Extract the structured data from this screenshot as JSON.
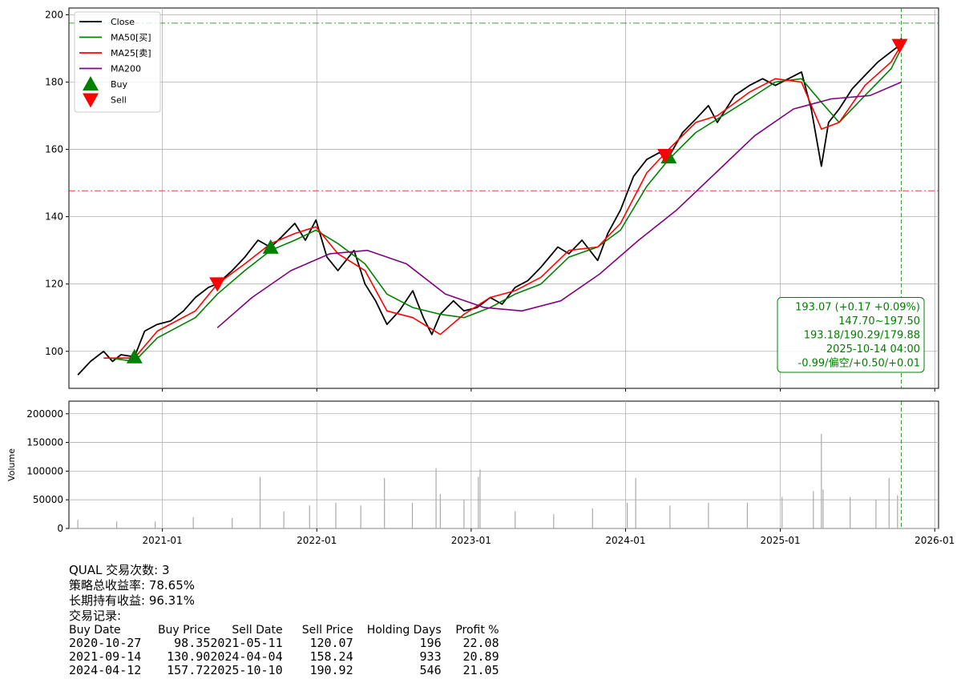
{
  "chart_data": [
    {
      "type": "line",
      "title": "",
      "xlabel": "",
      "ylabel": "",
      "ylim": [
        89,
        202
      ],
      "yticks": [
        100,
        120,
        140,
        160,
        180,
        200
      ],
      "xlim": [
        "2020-05-25",
        "2026-01-10"
      ],
      "xticks": [
        "2021-01-01",
        "2022-01-01",
        "2023-01-01",
        "2024-01-01",
        "2025-01-01",
        "2026-01-01"
      ],
      "xtick_labels": [
        "2021-01",
        "2022-01",
        "2023-01",
        "2024-01",
        "2025-01",
        "2026-01"
      ],
      "grid": true,
      "legend": "upper-left",
      "series": [
        {
          "name": "Close",
          "color": "#000000",
          "x": [
            "2020-06-15",
            "2020-07-15",
            "2020-08-15",
            "2020-09-05",
            "2020-09-25",
            "2020-10-27",
            "2020-11-20",
            "2020-12-20",
            "2021-01-20",
            "2021-02-20",
            "2021-03-20",
            "2021-04-20",
            "2021-05-11",
            "2021-06-15",
            "2021-07-15",
            "2021-08-15",
            "2021-09-14",
            "2021-10-10",
            "2021-11-10",
            "2021-12-05",
            "2021-12-30",
            "2022-01-25",
            "2022-02-20",
            "2022-03-30",
            "2022-04-25",
            "2022-05-20",
            "2022-06-16",
            "2022-07-15",
            "2022-08-16",
            "2022-09-10",
            "2022-09-30",
            "2022-10-20",
            "2022-11-20",
            "2022-12-15",
            "2023-01-15",
            "2023-02-15",
            "2023-03-15",
            "2023-04-15",
            "2023-05-15",
            "2023-06-15",
            "2023-07-25",
            "2023-08-20",
            "2023-09-20",
            "2023-10-27",
            "2023-11-20",
            "2023-12-20",
            "2024-01-20",
            "2024-02-20",
            "2024-03-20",
            "2024-04-12",
            "2024-05-15",
            "2024-06-15",
            "2024-07-15",
            "2024-08-05",
            "2024-09-15",
            "2024-10-20",
            "2024-11-20",
            "2024-12-20",
            "2025-01-20",
            "2025-02-20",
            "2025-03-15",
            "2025-04-08",
            "2025-04-25",
            "2025-05-20",
            "2025-06-20",
            "2025-07-20",
            "2025-08-20",
            "2025-09-20",
            "2025-10-10",
            "2025-10-14"
          ],
          "y": [
            93,
            97,
            100,
            97,
            99,
            98.35,
            106,
            108,
            109,
            112,
            116,
            119,
            120.07,
            124,
            128,
            133,
            130.9,
            134,
            138,
            133,
            139,
            128,
            124,
            130,
            120,
            115,
            108,
            112,
            118,
            110,
            105,
            111,
            115,
            112,
            113,
            116,
            114,
            119,
            121,
            125,
            131,
            129,
            133,
            127,
            135,
            142,
            152,
            157,
            159,
            157.72,
            165,
            169,
            173,
            168,
            176,
            179,
            181,
            179,
            181,
            183,
            172,
            155,
            168,
            172,
            178,
            182,
            186,
            189,
            190.92,
            193.07
          ]
        },
        {
          "name": "MA50[买]",
          "color": "#008000",
          "x": [
            "2020-09-01",
            "2020-10-27",
            "2020-12-20",
            "2021-03-20",
            "2021-05-11",
            "2021-07-15",
            "2021-09-14",
            "2021-11-10",
            "2021-12-30",
            "2022-02-20",
            "2022-04-25",
            "2022-06-16",
            "2022-08-16",
            "2022-10-20",
            "2022-12-15",
            "2023-02-15",
            "2023-04-15",
            "2023-06-15",
            "2023-08-20",
            "2023-10-27",
            "2023-12-20",
            "2024-02-20",
            "2024-04-12",
            "2024-06-15",
            "2024-08-05",
            "2024-10-20",
            "2024-12-20",
            "2025-02-20",
            "2025-04-08",
            "2025-05-20",
            "2025-07-20",
            "2025-09-20",
            "2025-10-14"
          ],
          "y": [
            98,
            97,
            104,
            110,
            117,
            124,
            130,
            133,
            136,
            132,
            126,
            117,
            113,
            111,
            110,
            113,
            117,
            120,
            128,
            131,
            136,
            149,
            157,
            165,
            169,
            175,
            180,
            181,
            174,
            168,
            176,
            184,
            190
          ]
        },
        {
          "name": "MA25[卖]",
          "color": "#ff0000",
          "x": [
            "2020-08-15",
            "2020-10-27",
            "2020-12-20",
            "2021-03-20",
            "2021-05-11",
            "2021-07-15",
            "2021-09-14",
            "2021-11-10",
            "2021-12-30",
            "2022-02-20",
            "2022-04-25",
            "2022-06-16",
            "2022-08-16",
            "2022-10-20",
            "2022-12-15",
            "2023-02-15",
            "2023-04-15",
            "2023-06-15",
            "2023-08-20",
            "2023-10-27",
            "2023-12-20",
            "2024-02-20",
            "2024-04-12",
            "2024-06-15",
            "2024-08-05",
            "2024-10-20",
            "2024-12-20",
            "2025-02-20",
            "2025-04-08",
            "2025-05-20",
            "2025-07-20",
            "2025-09-20",
            "2025-10-14"
          ],
          "y": [
            98,
            98,
            106,
            112,
            120,
            126,
            132,
            135,
            137,
            129,
            124,
            112,
            110,
            105,
            111,
            116,
            118,
            122,
            130,
            131,
            138,
            153,
            160,
            168,
            170,
            177,
            181,
            180,
            166,
            168,
            179,
            186,
            191
          ]
        },
        {
          "name": "MA200",
          "color": "#800080",
          "x": [
            "2021-05-11",
            "2021-08-01",
            "2021-11-01",
            "2022-02-01",
            "2022-05-01",
            "2022-08-01",
            "2022-11-01",
            "2023-02-01",
            "2023-05-01",
            "2023-08-01",
            "2023-11-01",
            "2024-02-01",
            "2024-05-01",
            "2024-08-01",
            "2024-11-01",
            "2025-02-01",
            "2025-05-01",
            "2025-08-01",
            "2025-10-14"
          ],
          "y": [
            107,
            116,
            124,
            129,
            130,
            126,
            117,
            113,
            112,
            115,
            123,
            133,
            142,
            153,
            164,
            172,
            175,
            176,
            180
          ]
        }
      ],
      "markers": [
        {
          "name": "Buy",
          "color": "#008000",
          "shape": "triangle-up",
          "x": [
            "2020-10-27",
            "2021-09-14",
            "2024-04-12"
          ],
          "y": [
            98.35,
            130.9,
            157.72
          ]
        },
        {
          "name": "Sell",
          "color": "#ff0000",
          "shape": "triangle-down",
          "x": [
            "2021-05-11",
            "2024-04-04",
            "2025-10-10"
          ],
          "y": [
            120.07,
            158.24,
            190.92
          ]
        }
      ],
      "hlines": [
        {
          "y": 197.5,
          "color": "#008000",
          "style": "dash-dot"
        },
        {
          "y": 147.7,
          "color": "#ff0000",
          "style": "dash-dot"
        }
      ],
      "vlines": [
        {
          "x": "2025-10-14",
          "color": "#008000",
          "style": "dashed"
        }
      ],
      "info_box": {
        "lines": [
          "193.07 (+0.17 +0.09%)",
          "147.70~197.50",
          "193.18/190.29/179.88",
          "2025-10-14 04:00",
          "-0.99/偏空/+0.50/+0.01"
        ],
        "color": "#008000",
        "placement": "lower-right"
      }
    },
    {
      "type": "bar",
      "title": "",
      "xlabel": "",
      "ylabel": "Volume",
      "ylim": [
        0,
        222000
      ],
      "yticks": [
        0,
        50000,
        100000,
        150000,
        200000
      ],
      "xlim": [
        "2020-05-25",
        "2026-01-10"
      ],
      "color": "#aaaaaa",
      "grid": true,
      "series": [
        {
          "name": "Volume",
          "x": [
            "2020-06-15",
            "2020-09-15",
            "2020-12-15",
            "2021-03-15",
            "2021-06-15",
            "2021-08-20",
            "2021-10-15",
            "2021-12-15",
            "2022-02-15",
            "2022-04-15",
            "2022-06-10",
            "2022-08-15",
            "2022-10-10",
            "2022-10-20",
            "2022-12-15",
            "2023-01-18",
            "2023-01-22",
            "2023-04-15",
            "2023-07-15",
            "2023-10-15",
            "2024-01-05",
            "2024-01-25",
            "2024-04-15",
            "2024-07-15",
            "2024-10-15",
            "2025-01-05",
            "2025-03-20",
            "2025-04-08",
            "2025-04-12",
            "2025-06-15",
            "2025-08-15",
            "2025-09-15",
            "2025-10-05"
          ],
          "y": [
            15000,
            12000,
            12000,
            20000,
            18000,
            90000,
            30000,
            40000,
            45000,
            40000,
            88000,
            45000,
            105000,
            60000,
            50000,
            90000,
            103000,
            30000,
            25000,
            35000,
            45000,
            88000,
            40000,
            45000,
            45000,
            55000,
            65000,
            165000,
            68000,
            55000,
            50000,
            88000,
            58000
          ]
        }
      ]
    }
  ],
  "report": {
    "lines": [
      "QUAL 交易次数: 3",
      "策略总收益率: 78.65%",
      "长期持有收益: 96.31%",
      "交易记录:"
    ],
    "table": {
      "headers": [
        "Buy Date",
        "Buy Price",
        "Sell Date",
        "Sell Price",
        "Holding Days",
        "Profit %"
      ],
      "rows": [
        [
          "2020-10-27",
          "98.35",
          "2021-05-11",
          "120.07",
          "196",
          "22.08"
        ],
        [
          "2021-09-14",
          "130.90",
          "2024-04-04",
          "158.24",
          "933",
          "20.89"
        ],
        [
          "2024-04-12",
          "157.72",
          "2025-10-10",
          "190.92",
          "546",
          "21.05"
        ]
      ]
    }
  }
}
